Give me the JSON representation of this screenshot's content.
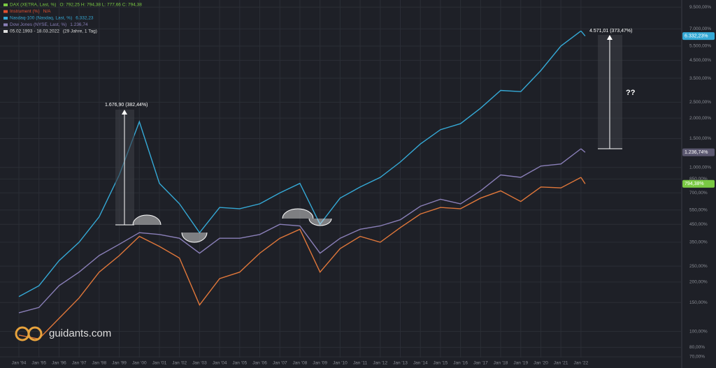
{
  "chart_data": {
    "type": "line",
    "legend": [
      {
        "text": "DAX (XETRA, Last, %)",
        "detail": "O: 792,25  H: 794,38  L: 777,66  C: 794,38"
      },
      {
        "text": "Instrument (%)",
        "detail": "N/A"
      },
      {
        "text": "Nasdaq-100 (Nasdaq, Last, %)",
        "detail": "6.332,23"
      },
      {
        "text": "Dow Jones (NYSE, Last, %)",
        "detail": "1.236,74"
      },
      {
        "text": "05.02.1993 - 18.03.2022",
        "detail": "(29 Jahre, 1 Tag)"
      }
    ],
    "log_scale": true,
    "grid": true,
    "categories": [
      "Jan '94",
      "Jan '95",
      "Jan '96",
      "Jan '97",
      "Jan '98",
      "Jan '99",
      "Jan '00",
      "Jan '01",
      "Jan '02",
      "Jan '03",
      "Jan '04",
      "Jan '05",
      "Jan '06",
      "Jan '07",
      "Jan '08",
      "Jan '09",
      "Jan '10",
      "Jan '11",
      "Jan '12",
      "Jan '13",
      "Jan '14",
      "Jan '15",
      "Jan '16",
      "Jan '17",
      "Jan '18",
      "Jan '19",
      "Jan '20",
      "Jan '21",
      "Jan '22"
    ],
    "series": [
      {
        "name": "DAX",
        "color": "#e0773a",
        "badge_color": "#7ac943",
        "last": {
          "value": 794.38,
          "label": "794,38%"
        },
        "values": [
          95,
          90,
          120,
          160,
          230,
          290,
          380,
          330,
          280,
          145,
          210,
          230,
          300,
          370,
          420,
          230,
          320,
          380,
          350,
          430,
          520,
          570,
          560,
          650,
          720,
          620,
          760,
          750,
          870
        ]
      },
      {
        "name": "Dow Jones",
        "color": "#8a7fb8",
        "badge_color": "#5b5870",
        "last": {
          "value": 1236.74,
          "label": "1.236,74%"
        },
        "values": [
          130,
          140,
          190,
          230,
          290,
          340,
          400,
          390,
          370,
          300,
          370,
          370,
          390,
          450,
          440,
          300,
          370,
          420,
          440,
          480,
          580,
          640,
          600,
          720,
          900,
          870,
          1020,
          1050,
          1300
        ]
      },
      {
        "name": "Nasdaq-100",
        "color": "#35a9d6",
        "badge_color": "#35a9d6",
        "last": {
          "value": 6332.23,
          "label": "6.332,23%"
        },
        "values": [
          163,
          190,
          270,
          350,
          500,
          900,
          1900,
          800,
          600,
          400,
          570,
          560,
          600,
          700,
          800,
          450,
          650,
          760,
          870,
          1080,
          1390,
          1700,
          1850,
          2300,
          2950,
          2900,
          3900,
          5500,
          6800
        ]
      }
    ],
    "ylim": [
      66,
      10500
    ],
    "yticks": [
      {
        "value": 70,
        "label": "70,00%"
      },
      {
        "value": 80,
        "label": "80,00%"
      },
      {
        "value": 100,
        "label": "100,00%"
      },
      {
        "value": 150,
        "label": "150,00%"
      },
      {
        "value": 200,
        "label": "200,00%"
      },
      {
        "value": 250,
        "label": "250,00%"
      },
      {
        "value": 350,
        "label": "350,00%"
      },
      {
        "value": 450,
        "label": "450,00%"
      },
      {
        "value": 550,
        "label": "550,00%"
      },
      {
        "value": 700,
        "label": "700,00%"
      },
      {
        "value": 850,
        "label": "850,00%"
      },
      {
        "value": 1000,
        "label": "1.000,00%"
      },
      {
        "value": 1500,
        "label": "1.500,00%"
      },
      {
        "value": 2000,
        "label": "2.000,00%"
      },
      {
        "value": 2500,
        "label": "2.500,00%"
      },
      {
        "value": 3500,
        "label": "3.500,00%"
      },
      {
        "value": 4500,
        "label": "4.500,00%"
      },
      {
        "value": 5500,
        "label": "5.500,00%"
      },
      {
        "value": 7000,
        "label": "7.000,00%"
      },
      {
        "value": 9500,
        "label": "9.500,00%"
      }
    ],
    "annotations": [
      "1.676,90 (382,44%)",
      "4.571,01 (373,47%)",
      "??"
    ],
    "brand": "guidants.com"
  }
}
